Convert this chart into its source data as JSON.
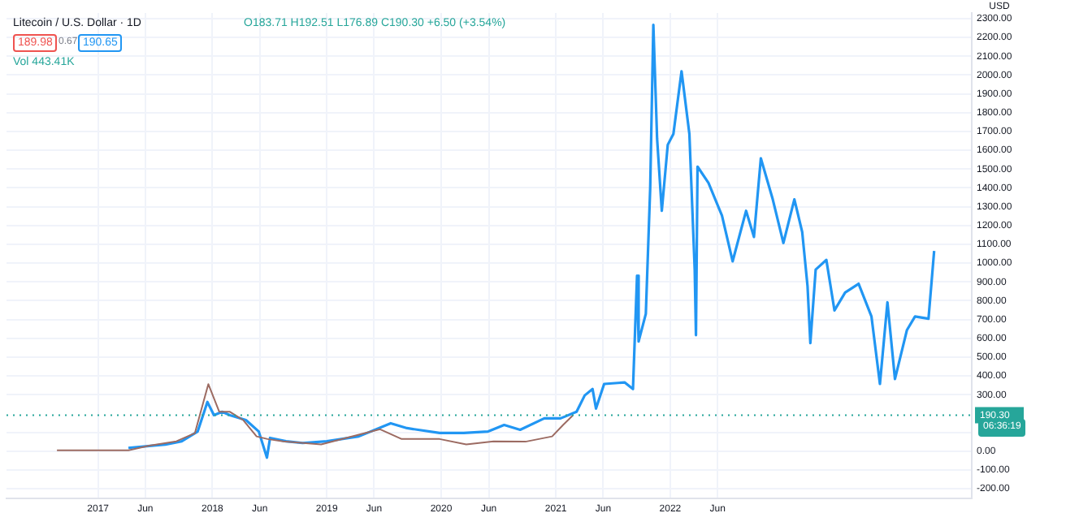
{
  "chart_data": {
    "type": "line",
    "title": "Litecoin / U.S. Dollar · 1D",
    "ylabel": "USD",
    "annotations": [
      "O183.71 H192.51 L176.89 C190.30 +6.50 (+3.54%)",
      "189.98",
      "0.67",
      "190.65",
      "Vol 443.41K",
      "06:36:19"
    ],
    "series": [
      {
        "color": "#9c6b62",
        "x": [
          "2016-08-23",
          "2017-04-08",
          "2017-06-14",
          "2017-09-08",
          "2017-11-06",
          "2017-12-19",
          "2018-01-23",
          "2018-02-26",
          "2018-04-09",
          "2018-05-22",
          "2018-06-26",
          "2018-08-15",
          "2018-12-14",
          "2019-06-20",
          "2019-08-28",
          "2019-12-27",
          "2020-03-21",
          "2020-06-16",
          "2020-09-26",
          "2020-12-20",
          "2021-01-24",
          "2021-02-24"
        ],
        "values": [
          4,
          4,
          29,
          52,
          95,
          356,
          209,
          209,
          165,
          78,
          64,
          52,
          35,
          116,
          64,
          64,
          35,
          52,
          50,
          78,
          139,
          190
        ]
      },
      {
        "color": "#2196f3",
        "x": [
          "2017-04-08",
          "2017-08-04",
          "2017-09-25",
          "2017-11-15",
          "2017-12-16",
          "2018-01-06",
          "2018-02-01",
          "2018-02-26",
          "2018-04-18",
          "2018-05-29",
          "2018-06-24",
          "2018-07-04",
          "2018-08-24",
          "2018-10-16",
          "2019-01-01",
          "2019-04-13",
          "2019-07-24",
          "2019-09-14",
          "2019-12-27",
          "2020-03-13",
          "2020-05-30",
          "2020-07-20",
          "2020-09-09",
          "2020-11-25",
          "2021-01-16",
          "2021-03-08",
          "2021-04-03",
          "2021-04-28",
          "2021-05-09",
          "2021-06-04",
          "2021-08-09",
          "2021-09-04",
          "2021-09-17",
          "2021-09-22",
          "2021-10-15",
          "2021-10-29",
          "2021-11-08",
          "2021-11-20",
          "2021-12-05",
          "2021-12-24",
          "2022-01-11",
          "2022-02-06",
          "2022-03-03",
          "2022-03-20",
          "2022-03-24",
          "2022-03-29",
          "2022-05-03",
          "2022-06-15",
          "2022-07-19",
          "2022-08-31",
          "2022-09-25",
          "2022-10-17",
          "2022-11-24",
          "2022-12-28",
          "2023-02-01",
          "2023-02-26",
          "2023-03-15",
          "2023-03-24",
          "2023-04-10",
          "2023-05-14",
          "2023-06-09",
          "2023-07-13",
          "2023-08-25",
          "2023-10-05",
          "2023-11-01",
          "2023-11-25",
          "2023-12-19",
          "2024-01-26",
          "2024-02-21",
          "2024-04-04",
          "2024-04-14",
          "2024-04-22"
        ],
        "values": [
          17,
          35,
          52,
          104,
          261,
          191,
          209,
          191,
          165,
          104,
          -35,
          70,
          52,
          43,
          52,
          78,
          148,
          122,
          96,
          96,
          104,
          139,
          113,
          174,
          174,
          209,
          296,
          330,
          226,
          357,
          365,
          330,
          933,
          583,
          730,
          1400,
          2267,
          1661,
          1278,
          1629,
          1687,
          2020,
          1687,
          965,
          617,
          1513,
          1426,
          1252,
          1009,
          1278,
          1139,
          1557,
          1339,
          1107,
          1339,
          1165,
          878,
          574,
          965,
          1017,
          748,
          843,
          890,
          716,
          357,
          791,
          383,
          643,
          716,
          704,
          904,
          1064
        ]
      }
    ],
    "xlim": [
      "2016-03-15",
      "2024-08-20"
    ],
    "xticks": [
      {
        "value": "2017-01-01",
        "label": "2017"
      },
      {
        "value": "2017-06-01",
        "label": "Jun"
      },
      {
        "value": "2018-01-01",
        "label": "2018"
      },
      {
        "value": "2018-06-01",
        "label": "Jun"
      },
      {
        "value": "2019-01-01",
        "label": "2019"
      },
      {
        "value": "2019-06-01",
        "label": "Jun"
      },
      {
        "value": "2020-01-01",
        "label": "2020"
      },
      {
        "value": "2020-06-01",
        "label": "Jun"
      },
      {
        "value": "2021-01-01",
        "label": "2021"
      },
      {
        "value": "2021-06-01",
        "label": "Jun"
      },
      {
        "value": "2022-01-01",
        "label": "2022"
      },
      {
        "value": "2022-06-01",
        "label": "Jun"
      }
    ],
    "ylim": [
      -250,
      2330
    ],
    "yticks": [
      {
        "value": -200,
        "label": "-200.00"
      },
      {
        "value": -100,
        "label": "-100.00"
      },
      {
        "value": 0,
        "label": "0.00"
      },
      {
        "value": 100,
        "label": null
      },
      {
        "value": 300,
        "label": "300.00"
      },
      {
        "value": 400,
        "label": "400.00"
      },
      {
        "value": 500,
        "label": "500.00"
      },
      {
        "value": 600,
        "label": "600.00"
      },
      {
        "value": 700,
        "label": "700.00"
      },
      {
        "value": 800,
        "label": "800.00"
      },
      {
        "value": 900,
        "label": "900.00"
      },
      {
        "value": 1000,
        "label": "1000.00"
      },
      {
        "value": 1100,
        "label": "1100.00"
      },
      {
        "value": 1200,
        "label": "1200.00"
      },
      {
        "value": 1300,
        "label": "1300.00"
      },
      {
        "value": 1400,
        "label": "1400.00"
      },
      {
        "value": 1500,
        "label": "1500.00"
      },
      {
        "value": 1600,
        "label": "1600.00"
      },
      {
        "value": 1700,
        "label": "1700.00"
      },
      {
        "value": 1800,
        "label": "1800.00"
      },
      {
        "value": 1900,
        "label": "1900.00"
      },
      {
        "value": 2000,
        "label": "2000.00"
      },
      {
        "value": 2100,
        "label": "2100.00"
      },
      {
        "value": 2200,
        "label": "2200.00"
      },
      {
        "value": 2300,
        "label": "2300.00"
      }
    ],
    "ref_lines": [
      {
        "axis": "y",
        "value": 190.3,
        "label": "190.30",
        "color": "#26a69a",
        "line_style": "dotted"
      }
    ],
    "grid": true,
    "legend": false,
    "marker": "none",
    "line_style": "solid"
  }
}
